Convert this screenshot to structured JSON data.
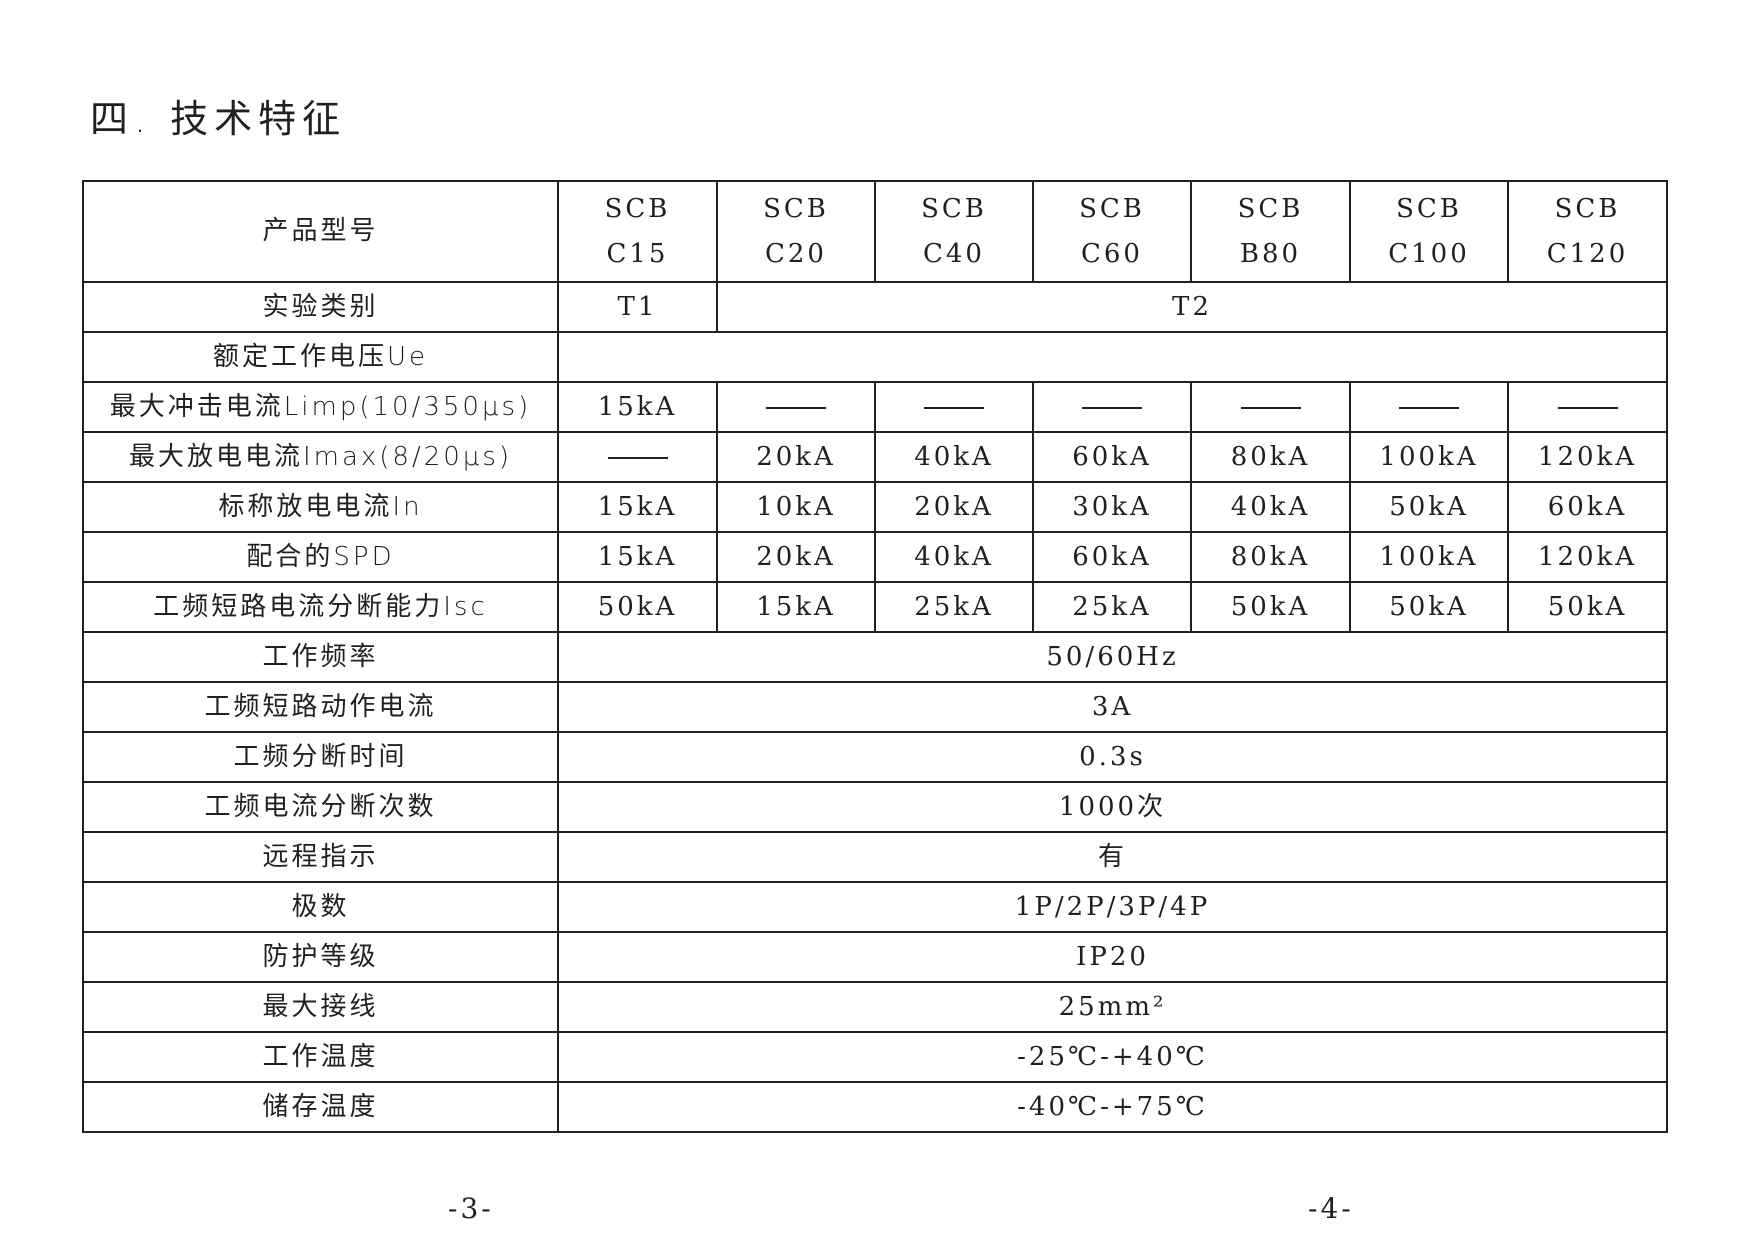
{
  "title": "四. 技术特征",
  "header": {
    "label": "产品型号",
    "models": [
      {
        "line1": "SCB",
        "line2": "C15"
      },
      {
        "line1": "SCB",
        "line2": "C20"
      },
      {
        "line1": "SCB",
        "line2": "C40"
      },
      {
        "line1": "SCB",
        "line2": "C60"
      },
      {
        "line1": "SCB",
        "line2": "B80"
      },
      {
        "line1": "SCB",
        "line2": "C100"
      },
      {
        "line1": "SCB",
        "line2": "C120"
      }
    ]
  },
  "test_class": {
    "label": "实验类别",
    "t1": "T1",
    "t2": "T2"
  },
  "rated_voltage": {
    "label": "额定工作电压Ue",
    "value": ""
  },
  "per_model_rows": [
    {
      "label": "最大冲击电流Limp(10/350μs)",
      "values": [
        "15kA",
        "—",
        "—",
        "—",
        "—",
        "—",
        "—"
      ]
    },
    {
      "label": "最大放电电流Imax(8/20μs)",
      "values": [
        "—",
        "20kA",
        "40kA",
        "60kA",
        "80kA",
        "100kA",
        "120kA"
      ]
    },
    {
      "label": "标称放电电流In",
      "values": [
        "15kA",
        "10kA",
        "20kA",
        "30kA",
        "40kA",
        "50kA",
        "60kA"
      ]
    },
    {
      "label": "配合的SPD",
      "values": [
        "15kA",
        "20kA",
        "40kA",
        "60kA",
        "80kA",
        "100kA",
        "120kA"
      ]
    },
    {
      "label": "工频短路电流分断能力Isc",
      "values": [
        "50kA",
        "15kA",
        "25kA",
        "25kA",
        "50kA",
        "50kA",
        "50kA"
      ]
    }
  ],
  "common_rows": [
    {
      "label": "工作频率",
      "value": "50/60Hz"
    },
    {
      "label": "工频短路动作电流",
      "value": "3A"
    },
    {
      "label": "工频分断时间",
      "value": "0.3s"
    },
    {
      "label": "工频电流分断次数",
      "value": "1000次"
    },
    {
      "label": "远程指示",
      "value": "有"
    },
    {
      "label": "极数",
      "value": "1P/2P/3P/4P"
    },
    {
      "label": "防护等级",
      "value": "IP20"
    },
    {
      "label": "最大接线",
      "value": "25mm²"
    },
    {
      "label": "工作温度",
      "value": "-25℃-+40℃"
    },
    {
      "label": "储存温度",
      "value": "-40℃-+75℃"
    }
  ],
  "page_numbers": [
    "-3-",
    "-4-"
  ]
}
